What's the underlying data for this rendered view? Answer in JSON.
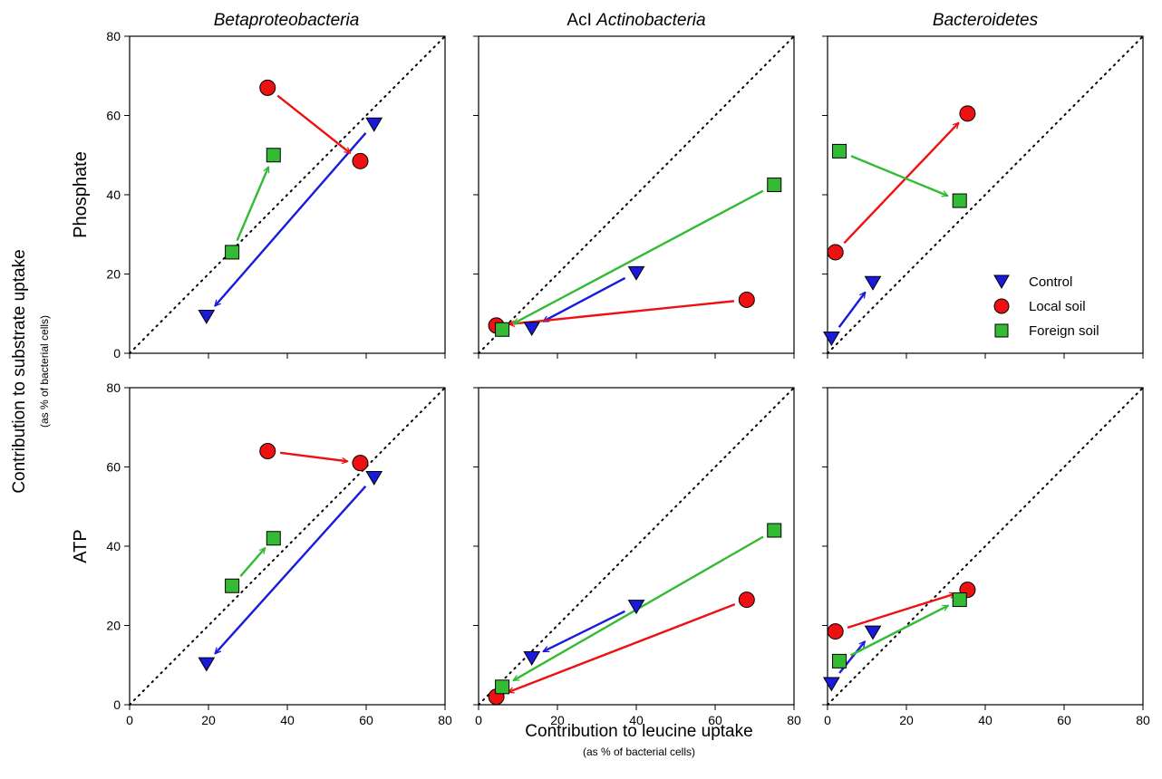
{
  "figure": {
    "column_titles": [
      {
        "pre": "",
        "italic": "Betaproteobacteria"
      },
      {
        "pre": "AcI ",
        "italic": "Actinobacteria"
      },
      {
        "pre": "",
        "italic": "Bacteroidetes"
      }
    ],
    "row_titles": [
      "Phosphate",
      "ATP"
    ],
    "ylabel": "Contribution to substrate uptake",
    "ylabel_sub": "(as % of bacterial cells)",
    "xlabel": "Contribution to leucine uptake",
    "xlabel_sub": "(as % of bacterial cells)",
    "legend": [
      {
        "label": "Control",
        "marker": "triangle-down",
        "color": "#1a1adc"
      },
      {
        "label": "Local soil",
        "marker": "circle",
        "color": "#ee1111"
      },
      {
        "label": "Foreign soil",
        "marker": "square",
        "color": "#33bb33"
      }
    ],
    "tick_values": [
      0,
      20,
      40,
      60,
      80
    ],
    "reference_line": "1:1 dotted diagonal"
  },
  "chart_data": [
    {
      "type": "scatter",
      "row": "Phosphate",
      "column": "Betaproteobacteria",
      "xlim": [
        0,
        80
      ],
      "ylim": [
        0,
        80
      ],
      "grid": false,
      "series": [
        {
          "name": "Control",
          "points": [
            [
              62,
              58
            ],
            [
              19.5,
              9.5
            ]
          ]
        },
        {
          "name": "Local soil",
          "points": [
            [
              35,
              67
            ],
            [
              58.5,
              48.5
            ]
          ]
        },
        {
          "name": "Foreign soil",
          "points": [
            [
              26,
              25.5
            ],
            [
              36.5,
              50
            ]
          ]
        }
      ]
    },
    {
      "type": "scatter",
      "row": "Phosphate",
      "column": "AcI Actinobacteria",
      "xlim": [
        0,
        80
      ],
      "ylim": [
        0,
        80
      ],
      "grid": false,
      "series": [
        {
          "name": "Control",
          "points": [
            [
              40,
              20.5
            ],
            [
              13.5,
              6.5
            ]
          ]
        },
        {
          "name": "Local soil",
          "points": [
            [
              68,
              13.5
            ],
            [
              4.5,
              7
            ]
          ]
        },
        {
          "name": "Foreign soil",
          "points": [
            [
              75,
              42.5
            ],
            [
              6,
              6
            ]
          ]
        }
      ]
    },
    {
      "type": "scatter",
      "row": "Phosphate",
      "column": "Bacteroidetes",
      "xlim": [
        0,
        80
      ],
      "ylim": [
        0,
        80
      ],
      "grid": false,
      "legend_position": "bottom-right",
      "series": [
        {
          "name": "Control",
          "points": [
            [
              1,
              4
            ],
            [
              11.5,
              18
            ]
          ]
        },
        {
          "name": "Local soil",
          "points": [
            [
              2,
              25.5
            ],
            [
              35.5,
              60.5
            ]
          ]
        },
        {
          "name": "Foreign soil",
          "points": [
            [
              3,
              51
            ],
            [
              33.5,
              38.5
            ]
          ]
        }
      ]
    },
    {
      "type": "scatter",
      "row": "ATP",
      "column": "Betaproteobacteria",
      "xlim": [
        0,
        80
      ],
      "ylim": [
        0,
        80
      ],
      "grid": false,
      "series": [
        {
          "name": "Control",
          "points": [
            [
              62,
              57.5
            ],
            [
              19.5,
              10.5
            ]
          ]
        },
        {
          "name": "Local soil",
          "points": [
            [
              35,
              64
            ],
            [
              58.5,
              61
            ]
          ]
        },
        {
          "name": "Foreign soil",
          "points": [
            [
              26,
              30
            ],
            [
              36.5,
              42
            ]
          ]
        }
      ]
    },
    {
      "type": "scatter",
      "row": "ATP",
      "column": "AcI Actinobacteria",
      "xlim": [
        0,
        80
      ],
      "ylim": [
        0,
        80
      ],
      "grid": false,
      "series": [
        {
          "name": "Control",
          "points": [
            [
              40,
              25
            ],
            [
              13.5,
              12
            ]
          ]
        },
        {
          "name": "Local soil",
          "points": [
            [
              68,
              26.5
            ],
            [
              4.5,
              2
            ]
          ]
        },
        {
          "name": "Foreign soil",
          "points": [
            [
              75,
              44
            ],
            [
              6,
              4.5
            ]
          ]
        }
      ]
    },
    {
      "type": "scatter",
      "row": "ATP",
      "column": "Bacteroidetes",
      "xlim": [
        0,
        80
      ],
      "ylim": [
        0,
        80
      ],
      "grid": false,
      "series": [
        {
          "name": "Control",
          "points": [
            [
              1,
              5.5
            ],
            [
              11.5,
              18.5
            ]
          ]
        },
        {
          "name": "Local soil",
          "points": [
            [
              2,
              18.5
            ],
            [
              35.5,
              29
            ]
          ]
        },
        {
          "name": "Foreign soil",
          "points": [
            [
              3,
              11
            ],
            [
              33.5,
              26.5
            ]
          ]
        }
      ]
    }
  ]
}
